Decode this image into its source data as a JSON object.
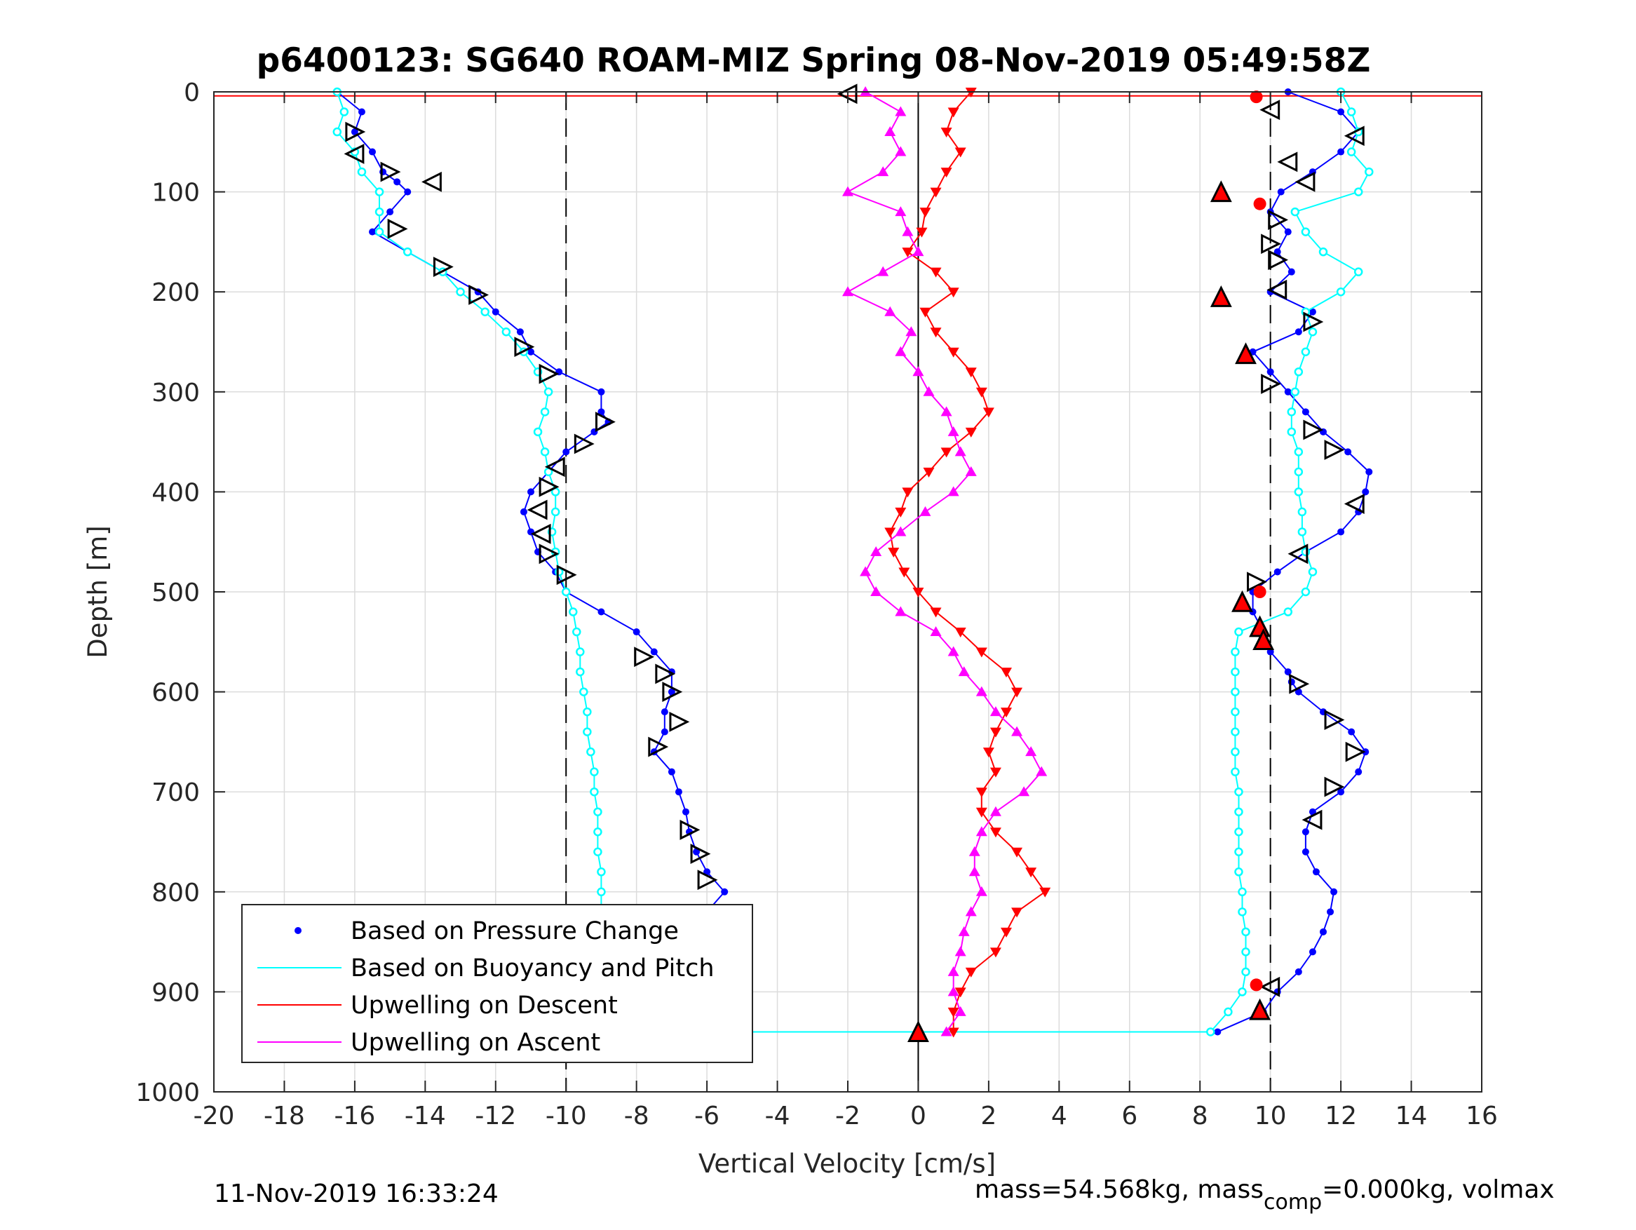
{
  "chart_data": {
    "type": "scatter",
    "title": "p6400123: SG640 ROAM-MIZ Spring 08-Nov-2019 05:49:58Z",
    "xlabel": "Vertical Velocity [cm/s]",
    "ylabel": "Depth [m]",
    "xlim": [
      -20,
      16
    ],
    "ylim": [
      0,
      1000
    ],
    "y_reversed": true,
    "grid": true,
    "x_ticks": [
      -20,
      -18,
      -16,
      -14,
      -12,
      -10,
      -8,
      -6,
      -4,
      -2,
      0,
      2,
      4,
      6,
      8,
      10,
      12,
      14,
      16
    ],
    "x_tick_labels": [
      "-20",
      "-18",
      "-16",
      "-14",
      "-12",
      "-10",
      "-8",
      "-6",
      "-4",
      "-2",
      "0",
      "2",
      "4",
      "6",
      "8",
      "10",
      "12",
      "14",
      "16"
    ],
    "y_ticks": [
      0,
      100,
      200,
      300,
      400,
      500,
      600,
      700,
      800,
      900,
      1000
    ],
    "y_tick_labels": [
      "0",
      "100",
      "200",
      "300",
      "400",
      "500",
      "600",
      "700",
      "800",
      "900",
      "1000"
    ],
    "reference_lines": {
      "dashed_x": [
        -10,
        10
      ],
      "solid_x": [
        0
      ]
    },
    "legend_position": "bottom-left",
    "series": [
      {
        "name": "Based on Pressure Change",
        "color": "#0000ff",
        "marker": "dot",
        "branches": [
          {
            "depth": [
              0,
              20,
              40,
              60,
              80,
              90,
              100,
              120,
              140,
              160,
              180,
              200,
              220,
              240,
              260,
              280,
              300,
              320,
              330,
              340,
              360,
              380,
              400,
              420,
              440,
              460,
              480,
              500,
              520,
              540,
              560,
              580,
              600,
              620,
              640,
              660,
              680,
              700,
              720,
              740,
              760,
              780,
              800,
              820,
              840,
              860,
              880,
              900,
              920,
              940
            ],
            "v": [
              -16.5,
              -15.8,
              -16.0,
              -15.5,
              -15.2,
              -14.8,
              -14.5,
              -15.0,
              -15.5,
              -14.5,
              -13.5,
              -12.5,
              -12.0,
              -11.3,
              -11.0,
              -10.2,
              -9.0,
              -9.0,
              -8.8,
              -9.2,
              -10.0,
              -10.5,
              -11.0,
              -11.2,
              -11.0,
              -10.8,
              -10.3,
              -10.0,
              -9.0,
              -8.0,
              -7.5,
              -7.0,
              -7.0,
              -7.2,
              -7.2,
              -7.5,
              -7.0,
              -6.8,
              -6.6,
              -6.5,
              -6.3,
              -6.0,
              -5.5,
              -6.0,
              -6.5,
              -7.0,
              -7.2,
              -7.5,
              -8.0,
              -9.0
            ]
          },
          {
            "depth": [
              940,
              920,
              900,
              880,
              860,
              840,
              820,
              800,
              780,
              760,
              740,
              720,
              700,
              680,
              660,
              640,
              620,
              600,
              590,
              580,
              560,
              540,
              520,
              500,
              480,
              460,
              440,
              420,
              400,
              380,
              360,
              340,
              320,
              300,
              280,
              260,
              240,
              220,
              200,
              180,
              160,
              140,
              120,
              100,
              80,
              60,
              40,
              20,
              0
            ],
            "v": [
              8.5,
              9.8,
              10.2,
              10.8,
              11.2,
              11.5,
              11.7,
              11.8,
              11.3,
              11.0,
              11.0,
              11.2,
              12.0,
              12.5,
              12.7,
              12.3,
              11.5,
              10.8,
              10.6,
              10.5,
              10.0,
              9.8,
              9.5,
              9.5,
              10.2,
              11.0,
              12.0,
              12.5,
              12.7,
              12.8,
              12.2,
              11.5,
              11.0,
              10.5,
              10.0,
              9.5,
              10.8,
              11.2,
              10.0,
              10.6,
              10.2,
              10.5,
              10.0,
              10.3,
              11.2,
              12.0,
              12.5,
              12.0,
              10.5
            ]
          }
        ]
      },
      {
        "name": "Based on Buoyancy and Pitch",
        "color": "#00ffff",
        "marker": "open-circle",
        "branches": [
          {
            "depth": [
              0,
              20,
              40,
              60,
              80,
              100,
              120,
              140,
              160,
              180,
              200,
              220,
              240,
              260,
              280,
              300,
              320,
              340,
              360,
              380,
              400,
              420,
              440,
              460,
              480,
              500,
              520,
              540,
              560,
              580,
              600,
              620,
              640,
              660,
              680,
              700,
              720,
              740,
              760,
              780,
              800,
              820,
              840,
              860,
              880,
              900,
              920,
              940
            ],
            "v": [
              -16.5,
              -16.3,
              -16.5,
              -16.0,
              -15.8,
              -15.3,
              -15.3,
              -15.3,
              -14.5,
              -13.5,
              -13.0,
              -12.3,
              -11.7,
              -11.2,
              -10.8,
              -10.5,
              -10.6,
              -10.8,
              -10.6,
              -10.5,
              -10.3,
              -10.3,
              -10.4,
              -10.3,
              -10.2,
              -10.0,
              -9.8,
              -9.7,
              -9.6,
              -9.6,
              -9.5,
              -9.4,
              -9.4,
              -9.3,
              -9.2,
              -9.2,
              -9.1,
              -9.1,
              -9.1,
              -9.0,
              -9.0,
              -9.0,
              -9.0,
              -9.0,
              -9.0,
              -9.1,
              -9.2,
              -9.5
            ]
          },
          {
            "depth": [
              940,
              920,
              900,
              880,
              860,
              840,
              820,
              800,
              780,
              760,
              740,
              720,
              700,
              680,
              660,
              640,
              620,
              600,
              580,
              560,
              540,
              520,
              500,
              480,
              460,
              440,
              420,
              400,
              380,
              360,
              340,
              320,
              300,
              280,
              260,
              240,
              220,
              200,
              180,
              160,
              140,
              120,
              100,
              80,
              60,
              40,
              20,
              0
            ],
            "v": [
              8.3,
              8.8,
              9.2,
              9.3,
              9.3,
              9.3,
              9.2,
              9.2,
              9.1,
              9.1,
              9.1,
              9.1,
              9.1,
              9.0,
              9.0,
              9.0,
              9.0,
              9.0,
              9.0,
              9.0,
              9.1,
              10.5,
              11.0,
              11.2,
              11.0,
              10.9,
              10.9,
              10.8,
              10.8,
              10.8,
              10.6,
              10.6,
              10.7,
              10.8,
              11.0,
              11.2,
              11.0,
              12.0,
              12.5,
              11.5,
              11.0,
              10.7,
              12.5,
              12.8,
              12.3,
              12.5,
              12.3,
              12.0
            ]
          }
        ]
      },
      {
        "name": "Upwelling on Descent",
        "color": "#ff0000",
        "marker": "triangle-down",
        "depth": [
          0,
          20,
          40,
          60,
          80,
          100,
          120,
          140,
          160,
          180,
          200,
          220,
          240,
          260,
          280,
          300,
          320,
          340,
          360,
          380,
          400,
          420,
          440,
          460,
          480,
          500,
          520,
          540,
          560,
          580,
          600,
          620,
          640,
          660,
          680,
          700,
          720,
          740,
          760,
          780,
          800,
          820,
          840,
          860,
          880,
          900,
          920,
          940
        ],
        "v": [
          1.5,
          1.0,
          0.8,
          1.2,
          0.8,
          0.5,
          0.2,
          0.1,
          -0.3,
          0.5,
          1.0,
          0.2,
          0.5,
          1.0,
          1.5,
          1.8,
          2.0,
          1.5,
          0.8,
          0.3,
          -0.3,
          -0.5,
          -0.8,
          -0.7,
          -0.4,
          0.0,
          0.5,
          1.2,
          1.8,
          2.5,
          2.8,
          2.5,
          2.2,
          2.0,
          2.2,
          1.8,
          1.8,
          2.2,
          2.8,
          3.2,
          3.6,
          2.8,
          2.5,
          2.2,
          1.5,
          1.2,
          1.0,
          1.0
        ]
      },
      {
        "name": "Upwelling on Ascent",
        "color": "#ff00ff",
        "marker": "triangle-up",
        "depth": [
          0,
          20,
          40,
          60,
          80,
          100,
          120,
          140,
          160,
          180,
          200,
          220,
          240,
          260,
          280,
          300,
          320,
          340,
          360,
          380,
          400,
          420,
          440,
          460,
          480,
          500,
          520,
          540,
          560,
          580,
          600,
          620,
          640,
          660,
          680,
          700,
          720,
          740,
          760,
          780,
          800,
          820,
          840,
          860,
          880,
          900,
          920,
          940
        ],
        "v": [
          -1.5,
          -0.5,
          -0.8,
          -0.5,
          -1.0,
          -2.0,
          -0.5,
          -0.3,
          0.0,
          -1.0,
          -2.0,
          -0.8,
          -0.2,
          -0.5,
          0.0,
          0.3,
          0.8,
          1.0,
          1.2,
          1.5,
          1.0,
          0.2,
          -0.5,
          -1.2,
          -1.5,
          -1.2,
          -0.5,
          0.5,
          1.0,
          1.3,
          1.8,
          2.2,
          2.8,
          3.2,
          3.5,
          3.0,
          2.2,
          1.8,
          1.6,
          1.6,
          1.8,
          1.5,
          1.3,
          1.2,
          1.0,
          1.0,
          1.2,
          0.8
        ]
      }
    ],
    "markers": {
      "open_triangles": [
        {
          "v": -2.0,
          "d": 2,
          "dir": "left"
        },
        {
          "v": -16.0,
          "d": 40,
          "dir": "right"
        },
        {
          "v": -16.0,
          "d": 62,
          "dir": "left"
        },
        {
          "v": -15.0,
          "d": 80,
          "dir": "right"
        },
        {
          "v": -13.8,
          "d": 90,
          "dir": "left"
        },
        {
          "v": -14.8,
          "d": 137,
          "dir": "right"
        },
        {
          "v": -13.5,
          "d": 175,
          "dir": "right"
        },
        {
          "v": -12.5,
          "d": 203,
          "dir": "right"
        },
        {
          "v": -11.2,
          "d": 255,
          "dir": "right"
        },
        {
          "v": -10.5,
          "d": 282,
          "dir": "right"
        },
        {
          "v": -8.9,
          "d": 330,
          "dir": "right"
        },
        {
          "v": -9.5,
          "d": 352,
          "dir": "right"
        },
        {
          "v": -10.3,
          "d": 375,
          "dir": "left"
        },
        {
          "v": -10.5,
          "d": 395,
          "dir": "right"
        },
        {
          "v": -10.8,
          "d": 418,
          "dir": "left"
        },
        {
          "v": -10.7,
          "d": 442,
          "dir": "left"
        },
        {
          "v": -10.5,
          "d": 462,
          "dir": "right"
        },
        {
          "v": -10.0,
          "d": 483,
          "dir": "right"
        },
        {
          "v": -7.8,
          "d": 565,
          "dir": "right"
        },
        {
          "v": -7.2,
          "d": 582,
          "dir": "right"
        },
        {
          "v": -7.0,
          "d": 600,
          "dir": "right"
        },
        {
          "v": -6.8,
          "d": 630,
          "dir": "right"
        },
        {
          "v": -7.4,
          "d": 655,
          "dir": "right"
        },
        {
          "v": -6.5,
          "d": 738,
          "dir": "right"
        },
        {
          "v": -6.2,
          "d": 762,
          "dir": "right"
        },
        {
          "v": -6.0,
          "d": 788,
          "dir": "right"
        },
        {
          "v": -6.6,
          "d": 838,
          "dir": "right"
        },
        {
          "v": -7.5,
          "d": 930,
          "dir": "right"
        },
        {
          "v": 10.0,
          "d": 18,
          "dir": "left"
        },
        {
          "v": 12.4,
          "d": 44,
          "dir": "left"
        },
        {
          "v": 10.5,
          "d": 70,
          "dir": "left"
        },
        {
          "v": 11.0,
          "d": 90,
          "dir": "left"
        },
        {
          "v": 10.2,
          "d": 128,
          "dir": "right"
        },
        {
          "v": 10.0,
          "d": 152,
          "dir": "right"
        },
        {
          "v": 10.2,
          "d": 168,
          "dir": "right"
        },
        {
          "v": 10.2,
          "d": 198,
          "dir": "left"
        },
        {
          "v": 11.2,
          "d": 230,
          "dir": "right"
        },
        {
          "v": 10.0,
          "d": 292,
          "dir": "right"
        },
        {
          "v": 11.2,
          "d": 338,
          "dir": "right"
        },
        {
          "v": 11.8,
          "d": 358,
          "dir": "right"
        },
        {
          "v": 12.4,
          "d": 412,
          "dir": "left"
        },
        {
          "v": 10.8,
          "d": 462,
          "dir": "left"
        },
        {
          "v": 9.6,
          "d": 490,
          "dir": "right"
        },
        {
          "v": 10.8,
          "d": 592,
          "dir": "right"
        },
        {
          "v": 11.8,
          "d": 628,
          "dir": "right"
        },
        {
          "v": 12.4,
          "d": 660,
          "dir": "right"
        },
        {
          "v": 11.8,
          "d": 695,
          "dir": "right"
        },
        {
          "v": 11.2,
          "d": 728,
          "dir": "left"
        },
        {
          "v": 10.0,
          "d": 895,
          "dir": "left"
        }
      ],
      "filled_triangles": [
        {
          "v": 8.6,
          "d": 100
        },
        {
          "v": 8.6,
          "d": 205
        },
        {
          "v": 9.3,
          "d": 262
        },
        {
          "v": 9.2,
          "d": 510
        },
        {
          "v": 9.7,
          "d": 535
        },
        {
          "v": 9.8,
          "d": 548
        },
        {
          "v": 9.7,
          "d": 918
        },
        {
          "v": -6.5,
          "d": 940
        },
        {
          "v": 0.0,
          "d": 940
        }
      ],
      "red_dots": [
        {
          "v": 9.6,
          "d": 5
        },
        {
          "v": 9.7,
          "d": 112
        },
        {
          "v": 9.7,
          "d": 500
        },
        {
          "v": 9.6,
          "d": 893
        }
      ]
    }
  },
  "footer": {
    "timestamp": "11-Nov-2019 16:33:24",
    "mass_text": "mass=54.568kg, mass",
    "mass_subscript": "comp",
    "mass_rest": "=0.000kg, volmax"
  }
}
